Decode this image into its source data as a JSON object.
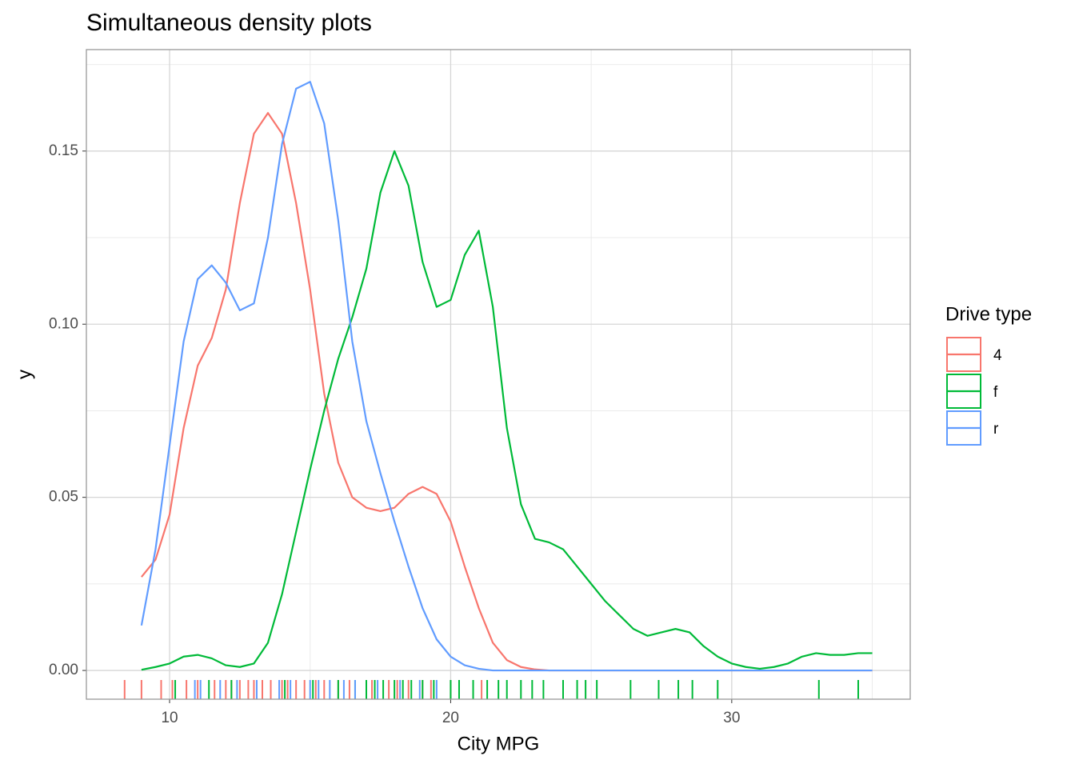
{
  "chart_data": {
    "type": "density",
    "title": "Simultaneous density plots",
    "x_label": "City MPG",
    "y_label": "y",
    "legend_title": "Drive type",
    "legend_position": "right",
    "xlim": [
      7.04,
      36.35
    ],
    "ylim": [
      -0.0083,
      0.1793
    ],
    "xticks": [
      10,
      20,
      30
    ],
    "x_minor_ticks": [
      15,
      25,
      35
    ],
    "yticks": [
      {
        "value": 0,
        "label": "0.00"
      },
      {
        "value": 0.05,
        "label": "0.05"
      },
      {
        "value": 0.1,
        "label": "0.10"
      },
      {
        "value": 0.15,
        "label": "0.15"
      }
    ],
    "y_minor_ticks": [
      0.025,
      0.075,
      0.125,
      0.175
    ],
    "grid": true,
    "x": [
      9,
      9.5,
      10,
      10.5,
      11,
      11.5,
      12,
      12.5,
      13,
      13.5,
      14,
      14.5,
      15,
      15.5,
      16,
      16.5,
      17,
      17.5,
      18,
      18.5,
      19,
      19.5,
      20,
      20.5,
      21,
      21.5,
      22,
      22.5,
      23,
      23.5,
      24,
      24.5,
      25,
      25.5,
      26,
      26.5,
      27,
      27.5,
      28,
      28.5,
      29,
      29.5,
      30,
      30.5,
      31,
      31.5,
      32,
      32.5,
      33,
      33.5,
      34,
      34.5,
      35
    ],
    "series": [
      {
        "name": "4",
        "color": "#F8766D",
        "values": [
          0.027,
          0.032,
          0.045,
          0.07,
          0.088,
          0.096,
          0.11,
          0.135,
          0.155,
          0.161,
          0.155,
          0.135,
          0.11,
          0.08,
          0.06,
          0.05,
          0.047,
          0.046,
          0.047,
          0.051,
          0.053,
          0.051,
          0.043,
          0.03,
          0.018,
          0.008,
          0.003,
          0.001,
          0.0003,
          0,
          0,
          0,
          0,
          0,
          0,
          0,
          0,
          0,
          0,
          0,
          0,
          0,
          0,
          0,
          0,
          0,
          0,
          0,
          0,
          0,
          0,
          0,
          0
        ],
        "rug": [
          8.4,
          9,
          9.7,
          10.1,
          10.6,
          11,
          11.6,
          12,
          12.2,
          12.5,
          12.8,
          13,
          13.3,
          13.6,
          14,
          14.2,
          14.5,
          14.8,
          15.2,
          15.5,
          16,
          16.4,
          17.2,
          17.8,
          18.1,
          18.5,
          19,
          19.3,
          20,
          21.1
        ]
      },
      {
        "name": "f",
        "color": "#00BA38",
        "values": [
          0.0002,
          0.001,
          0.002,
          0.004,
          0.0045,
          0.0035,
          0.0015,
          0.001,
          0.002,
          0.008,
          0.022,
          0.04,
          0.058,
          0.075,
          0.09,
          0.102,
          0.116,
          0.138,
          0.15,
          0.14,
          0.118,
          0.105,
          0.107,
          0.12,
          0.127,
          0.105,
          0.07,
          0.048,
          0.038,
          0.037,
          0.035,
          0.03,
          0.025,
          0.02,
          0.016,
          0.012,
          0.01,
          0.011,
          0.012,
          0.011,
          0.007,
          0.004,
          0.002,
          0.001,
          0.0005,
          0.001,
          0.002,
          0.004,
          0.005,
          0.0045,
          0.0045,
          0.005,
          0.005
        ],
        "rug": [
          10.2,
          11.4,
          12.2,
          14.1,
          15.1,
          16,
          16.6,
          17,
          17.3,
          17.6,
          18,
          18.3,
          18.6,
          19,
          19.4,
          20,
          20.3,
          20.8,
          21.3,
          21.7,
          22,
          22.5,
          22.9,
          23.3,
          24,
          24.5,
          24.8,
          25.2,
          26.4,
          27.4,
          28.1,
          28.6,
          29.5,
          33.1,
          34.5
        ]
      },
      {
        "name": "r",
        "color": "#619CFF",
        "values": [
          0.013,
          0.035,
          0.065,
          0.095,
          0.113,
          0.117,
          0.112,
          0.104,
          0.106,
          0.125,
          0.152,
          0.168,
          0.17,
          0.158,
          0.13,
          0.095,
          0.072,
          0.057,
          0.043,
          0.03,
          0.018,
          0.009,
          0.004,
          0.0015,
          0.0005,
          0,
          0,
          0,
          0,
          0,
          0,
          0,
          0,
          0,
          0,
          0,
          0,
          0,
          0,
          0,
          0,
          0,
          0,
          0,
          0,
          0,
          0,
          0,
          0,
          0,
          0,
          0,
          0
        ],
        "rug": [
          10.9,
          11.1,
          11.8,
          12.4,
          13.1,
          13.9,
          14.3,
          15,
          15.3,
          15.7,
          16.2,
          16.6,
          17.4,
          18.2,
          18.9,
          19.5
        ]
      }
    ]
  }
}
